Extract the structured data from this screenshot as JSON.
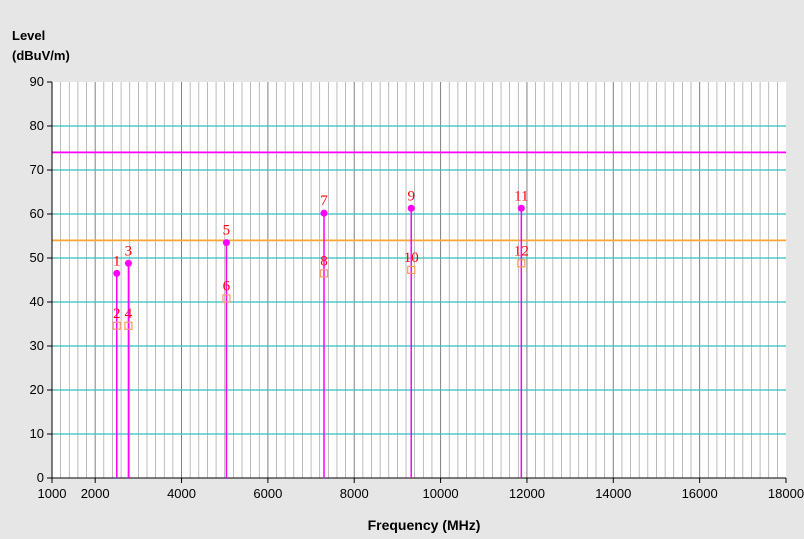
{
  "chart_data": {
    "type": "scatter",
    "title": "",
    "ylabel_lines": [
      "Level",
      "(dBuV/m)"
    ],
    "xlabel": "Frequency (MHz)",
    "xlim": [
      1000,
      18000
    ],
    "ylim": [
      0,
      90
    ],
    "x_ticks": [
      1000,
      2000,
      4000,
      6000,
      8000,
      10000,
      12000,
      14000,
      16000,
      18000
    ],
    "y_ticks": [
      0,
      10,
      20,
      30,
      40,
      50,
      60,
      70,
      80,
      90
    ],
    "grid": true,
    "limit_lines": [
      {
        "value": 74,
        "color": "#ff00ff"
      },
      {
        "value": 54,
        "color": "#ffa533"
      }
    ],
    "series": [
      {
        "style": "filled-circle",
        "color": "#ff00ff",
        "points": [
          {
            "label": "1",
            "x": 2500,
            "y": 46.5
          },
          {
            "label": "3",
            "x": 2770,
            "y": 48.8
          },
          {
            "label": "5",
            "x": 5040,
            "y": 53.5
          },
          {
            "label": "7",
            "x": 7300,
            "y": 60.2
          },
          {
            "label": "9",
            "x": 9320,
            "y": 61.3
          },
          {
            "label": "11",
            "x": 11870,
            "y": 61.3
          }
        ]
      },
      {
        "style": "open-square",
        "color": "#ff9966",
        "points": [
          {
            "label": "2",
            "x": 2500,
            "y": 34.6
          },
          {
            "label": "4",
            "x": 2770,
            "y": 34.6
          },
          {
            "label": "6",
            "x": 5040,
            "y": 40.8
          },
          {
            "label": "8",
            "x": 7300,
            "y": 46.5
          },
          {
            "label": "10",
            "x": 9320,
            "y": 47.3
          },
          {
            "label": "12",
            "x": 11870,
            "y": 48.8
          }
        ]
      }
    ],
    "colors": {
      "plot_background": "#ffffff",
      "page_background": "#e6e6e6",
      "major_grid": "#33c0c0",
      "minor_grid": "#a0a0a0",
      "stem": "#ff00ff",
      "marker_label": "#ff0000"
    }
  }
}
